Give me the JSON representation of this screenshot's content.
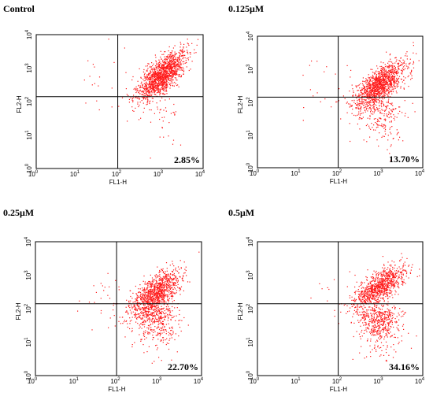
{
  "chart_data": [
    {
      "type": "scatter",
      "title": "Control",
      "xlabel": "FL1-H",
      "ylabel": "FL2-H",
      "scale": "log",
      "xlim": [
        1,
        10000
      ],
      "ylim": [
        1,
        10000
      ],
      "x_ticks": [
        "10",
        "10",
        "10",
        "10",
        "10"
      ],
      "x_tick_exponents": [
        "0",
        "1",
        "2",
        "3",
        "4"
      ],
      "y_ticks": [
        "10",
        "10",
        "10",
        "10",
        "10"
      ],
      "y_tick_exponents": [
        "0",
        "1",
        "2",
        "3",
        "4"
      ],
      "quadrant_gate": {
        "x": 90,
        "y": 140
      },
      "annotation": "2.85%",
      "cluster": {
        "center": [
          1000,
          600
        ],
        "spread": [
          0.28,
          0.32
        ],
        "tilt": 0.9,
        "n": 1500,
        "tail_frac": 0.02,
        "low_frac": 0.03
      },
      "point_color": "#ff1a1a"
    },
    {
      "type": "scatter",
      "title": "0.125μM",
      "xlabel": "FL1-H",
      "ylabel": "FL2-H",
      "scale": "log",
      "xlim": [
        1,
        10000
      ],
      "ylim": [
        1,
        10000
      ],
      "x_ticks": [
        "10",
        "10",
        "10",
        "10",
        "10"
      ],
      "x_tick_exponents": [
        "0",
        "1",
        "2",
        "3",
        "4"
      ],
      "y_ticks": [
        "10",
        "10",
        "10",
        "10",
        "10"
      ],
      "y_tick_exponents": [
        "0",
        "1",
        "2",
        "3",
        "4"
      ],
      "quadrant_gate": {
        "x": 90,
        "y": 140
      },
      "annotation": "13.70%",
      "cluster": {
        "center": [
          900,
          350
        ],
        "spread": [
          0.3,
          0.32
        ],
        "tilt": 0.8,
        "n": 1500,
        "tail_frac": 0.02,
        "low_frac": 0.14
      },
      "point_color": "#ff1a1a"
    },
    {
      "type": "scatter",
      "title": "0.25μM",
      "xlabel": "FL1-H",
      "ylabel": "FL2-H",
      "scale": "log",
      "xlim": [
        1,
        10000
      ],
      "ylim": [
        1,
        10000
      ],
      "x_ticks": [
        "10",
        "10",
        "10",
        "10",
        "10"
      ],
      "x_tick_exponents": [
        "0",
        "1",
        "2",
        "3",
        "4"
      ],
      "y_ticks": [
        "10",
        "10",
        "10",
        "10",
        "10"
      ],
      "y_tick_exponents": [
        "0",
        "1",
        "2",
        "3",
        "4"
      ],
      "quadrant_gate": {
        "x": 90,
        "y": 140
      },
      "annotation": "22.70%",
      "cluster": {
        "center": [
          800,
          300
        ],
        "spread": [
          0.3,
          0.35
        ],
        "tilt": 0.8,
        "n": 1500,
        "tail_frac": 0.02,
        "low_frac": 0.23
      },
      "point_color": "#ff1a1a"
    },
    {
      "type": "scatter",
      "title": "0.5μM",
      "xlabel": "FL1-H",
      "ylabel": "FL2-H",
      "scale": "log",
      "xlim": [
        1,
        10000
      ],
      "ylim": [
        1,
        10000
      ],
      "x_ticks": [
        "10",
        "10",
        "10",
        "10",
        "10"
      ],
      "x_tick_exponents": [
        "0",
        "1",
        "2",
        "3",
        "4"
      ],
      "y_ticks": [
        "10",
        "10",
        "10",
        "10",
        "10"
      ],
      "y_tick_exponents": [
        "0",
        "1",
        "2",
        "3",
        "4"
      ],
      "quadrant_gate": {
        "x": 90,
        "y": 140
      },
      "annotation": "34.16%",
      "cluster": {
        "center": [
          850,
          450
        ],
        "spread": [
          0.3,
          0.28
        ],
        "tilt": 0.7,
        "n": 1500,
        "tail_frac": 0.01,
        "low_frac": 0.34
      },
      "point_color": "#ff1a1a"
    }
  ]
}
